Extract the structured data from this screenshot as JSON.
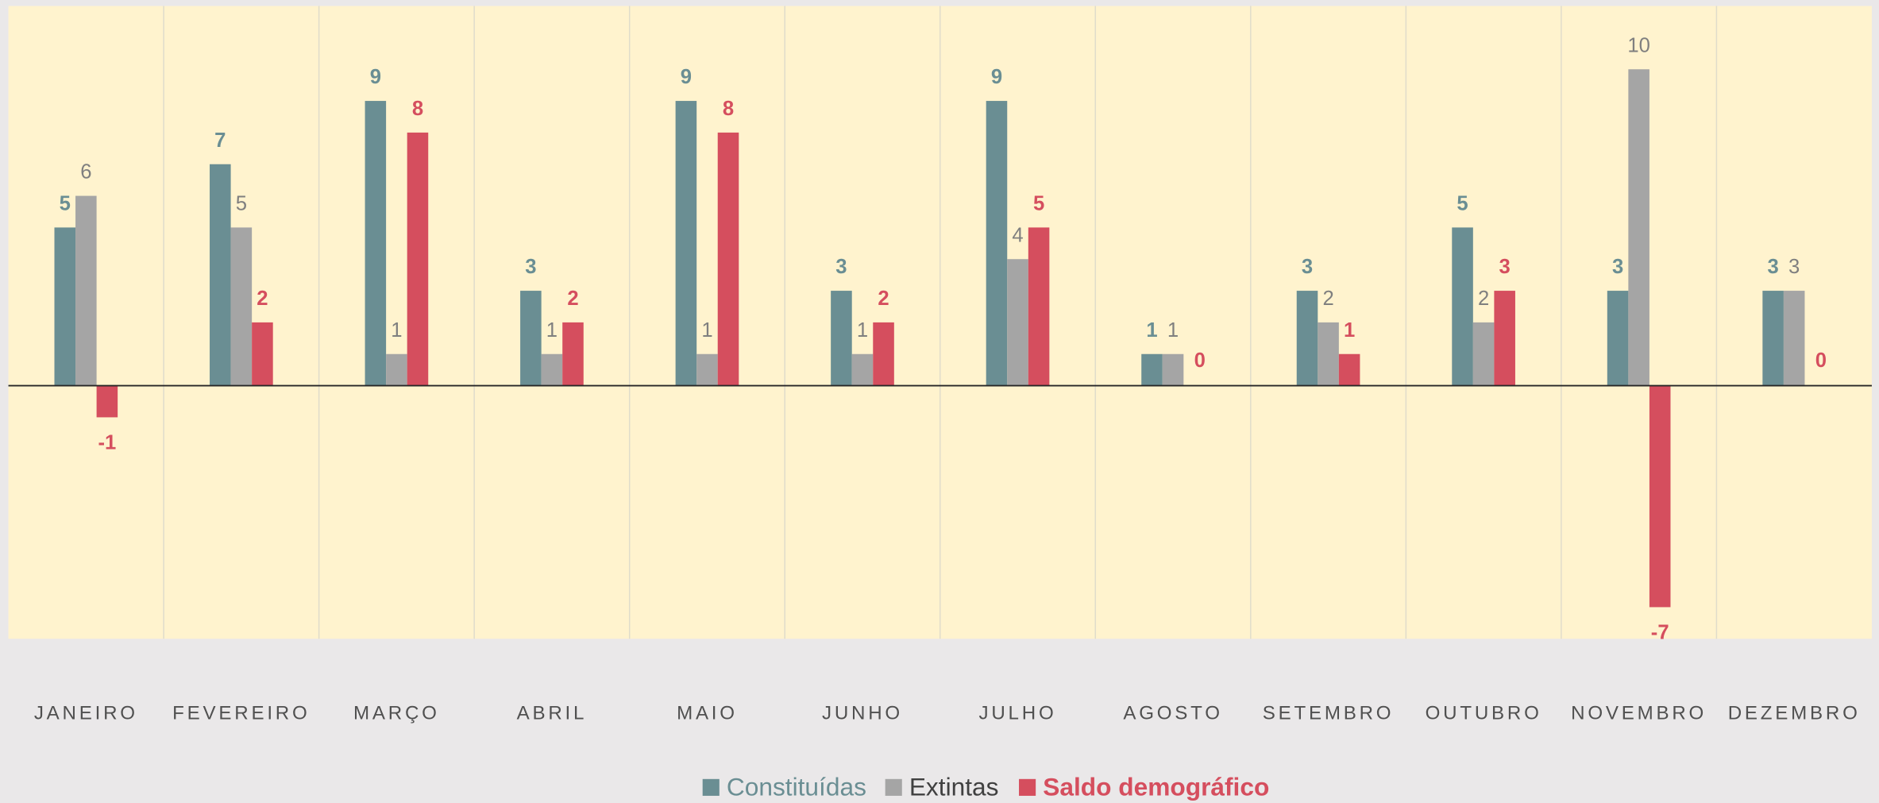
{
  "chart_data": {
    "type": "bar",
    "categories": [
      "JANEIRO",
      "FEVEREIRO",
      "MARÇO",
      "ABRIL",
      "MAIO",
      "JUNHO",
      "JULHO",
      "AGOSTO",
      "SETEMBRO",
      "OUTUBRO",
      "NOVEMBRO",
      "DEZEMBRO"
    ],
    "series": [
      {
        "name": "Constituídas",
        "color": "#6a8e93",
        "values": [
          5,
          7,
          9,
          3,
          9,
          3,
          9,
          1,
          3,
          5,
          3,
          3
        ]
      },
      {
        "name": "Extintas",
        "color": "#a5a5a5",
        "values": [
          6,
          5,
          1,
          1,
          1,
          1,
          4,
          1,
          2,
          2,
          10,
          3
        ]
      },
      {
        "name": "Saldo demográfico",
        "color": "#d54e5e",
        "values": [
          -1,
          2,
          8,
          2,
          8,
          2,
          5,
          0,
          1,
          3,
          -7,
          0
        ]
      }
    ],
    "ylim": [
      -8,
      12
    ],
    "legend": "bottom"
  }
}
